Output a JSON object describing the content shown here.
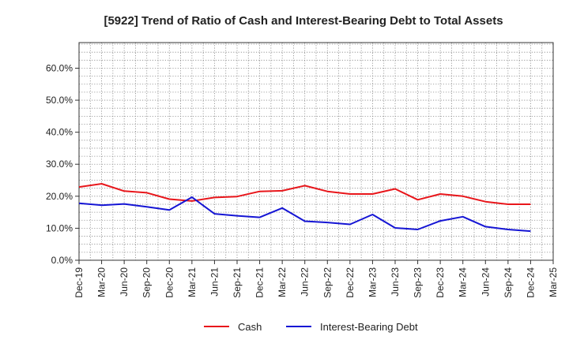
{
  "chart_data": {
    "type": "line",
    "title": "[5922]  Trend of Ratio of Cash and Interest-Bearing Debt to Total Assets",
    "xlabel": "",
    "ylabel": "",
    "x": [
      "Dec-19",
      "Mar-20",
      "Jun-20",
      "Sep-20",
      "Dec-20",
      "Mar-21",
      "Jun-21",
      "Sep-21",
      "Dec-21",
      "Mar-22",
      "Jun-22",
      "Sep-22",
      "Dec-22",
      "Mar-23",
      "Jun-23",
      "Sep-23",
      "Dec-23",
      "Mar-24",
      "Jun-24",
      "Sep-24",
      "Dec-24",
      "Mar-25"
    ],
    "ylim": [
      0,
      0.68
    ],
    "yticks": [
      0,
      0.1,
      0.2,
      0.3,
      0.4,
      0.5,
      0.6
    ],
    "ytick_labels": [
      "0.0%",
      "10.0%",
      "20.0%",
      "30.0%",
      "40.0%",
      "50.0%",
      "60.0%"
    ],
    "grid": true,
    "legend_position": "bottom-center",
    "series": [
      {
        "name": "Cash",
        "color": "#e8161b",
        "values": [
          0.229,
          0.239,
          0.216,
          0.211,
          0.191,
          0.185,
          0.196,
          0.199,
          0.215,
          0.217,
          0.233,
          0.215,
          0.207,
          0.207,
          0.223,
          0.189,
          0.207,
          0.2,
          0.183,
          0.175,
          0.175,
          null
        ]
      },
      {
        "name": "Interest-Bearing Debt",
        "color": "#1515d4",
        "values": [
          0.178,
          0.172,
          0.176,
          0.167,
          0.157,
          0.197,
          0.145,
          0.139,
          0.134,
          0.163,
          0.122,
          0.118,
          0.112,
          0.143,
          0.101,
          0.096,
          0.123,
          0.136,
          0.105,
          0.096,
          0.091,
          null
        ]
      }
    ]
  }
}
